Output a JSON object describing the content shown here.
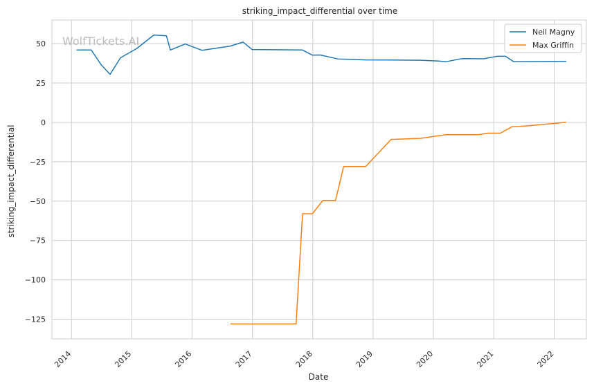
{
  "watermark": "WolfTickets.AI",
  "chart_data": {
    "type": "line",
    "title": "striking_impact_differential over time",
    "xlabel": "Date",
    "ylabel": "striking_impact_differential",
    "xlim": [
      "2013-09-05",
      "2022-07-15"
    ],
    "ylim": [
      -137.5,
      65
    ],
    "yticks": [
      50,
      25,
      0,
      -25,
      -50,
      -75,
      -100,
      -125
    ],
    "ytick_labels": [
      "50",
      "25",
      "0",
      "−25",
      "−50",
      "−75",
      "−100",
      "−125"
    ],
    "xticks": [
      "2014-01-01",
      "2015-01-01",
      "2016-01-01",
      "2017-01-01",
      "2018-01-01",
      "2019-01-01",
      "2020-01-01",
      "2021-01-01",
      "2022-01-01"
    ],
    "xtick_labels": [
      "2014",
      "2015",
      "2016",
      "2017",
      "2018",
      "2019",
      "2020",
      "2021",
      "2022"
    ],
    "grid": true,
    "legend_position": "top-right",
    "series": [
      {
        "name": "Neil Magny",
        "color": "#1f77b4",
        "points": [
          [
            "2014-02-01",
            46
          ],
          [
            "2014-05-01",
            46
          ],
          [
            "2014-07-01",
            36.5
          ],
          [
            "2014-08-23",
            30.5
          ],
          [
            "2014-10-25",
            41
          ],
          [
            "2015-02-01",
            47
          ],
          [
            "2015-05-15",
            55.5
          ],
          [
            "2015-07-30",
            55
          ],
          [
            "2015-08-23",
            46
          ],
          [
            "2015-11-21",
            49.8
          ],
          [
            "2016-03-01",
            45.8
          ],
          [
            "2016-08-20",
            48.5
          ],
          [
            "2016-11-05",
            51
          ],
          [
            "2016-12-30",
            46.3
          ],
          [
            "2017-10-31",
            46
          ],
          [
            "2017-12-30",
            42.7
          ],
          [
            "2018-02-15",
            42.8
          ],
          [
            "2018-06-01",
            40.3
          ],
          [
            "2018-11-17",
            39.7
          ],
          [
            "2019-04-20",
            39.6
          ],
          [
            "2019-10-18",
            39.5
          ],
          [
            "2020-02-01",
            39
          ],
          [
            "2020-03-15",
            38.5
          ],
          [
            "2020-06-20",
            40.5
          ],
          [
            "2020-10-31",
            40.4
          ],
          [
            "2021-01-20",
            42
          ],
          [
            "2021-03-13",
            42
          ],
          [
            "2021-05-01",
            38.5
          ],
          [
            "2022-03-15",
            38.8
          ]
        ]
      },
      {
        "name": "Max Griffin",
        "color": "#ff7f0e",
        "points": [
          [
            "2016-08-20",
            -128
          ],
          [
            "2017-09-22",
            -128
          ],
          [
            "2017-10-31",
            -58
          ],
          [
            "2017-12-30",
            -58
          ],
          [
            "2018-03-03",
            -49.5
          ],
          [
            "2018-05-19",
            -49.5
          ],
          [
            "2018-07-07",
            -28
          ],
          [
            "2018-11-17",
            -28
          ],
          [
            "2019-02-10",
            -18.5
          ],
          [
            "2019-04-20",
            -10.8
          ],
          [
            "2019-10-18",
            -10.1
          ],
          [
            "2020-02-01",
            -8.5
          ],
          [
            "2020-03-15",
            -7.8
          ],
          [
            "2020-07-20",
            -7.8
          ],
          [
            "2020-10-01",
            -7.8
          ],
          [
            "2020-11-28",
            -6.8
          ],
          [
            "2021-02-10",
            -6.8
          ],
          [
            "2021-04-20",
            -2.8
          ],
          [
            "2021-06-01",
            -2.6
          ],
          [
            "2021-08-01",
            -2.1
          ],
          [
            "2021-11-01",
            -1.2
          ],
          [
            "2022-01-20",
            -0.5
          ],
          [
            "2022-03-15",
            0.2
          ]
        ]
      }
    ]
  }
}
